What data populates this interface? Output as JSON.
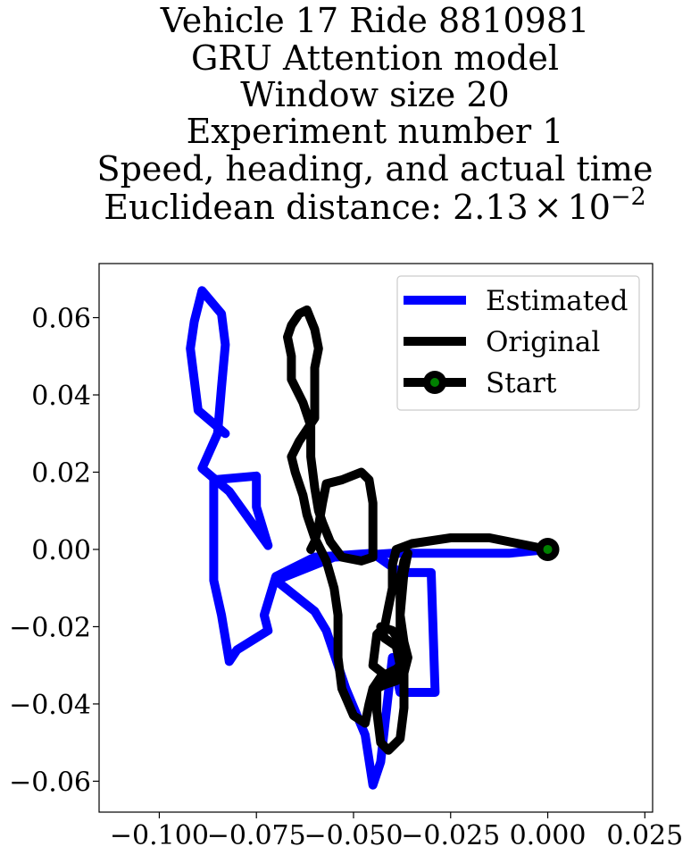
{
  "chart_data": {
    "type": "line",
    "title_lines": [
      "Vehicle 17 Ride 8810981",
      "GRU Attention model",
      "Window size 20",
      "Experiment number 1",
      "Speed, heading, and actual time"
    ],
    "title_last_prefix": "Euclidean distance: 2.13",
    "title_last_times": "×",
    "title_last_base": "10",
    "title_last_exponent": "−2",
    "xlim": [
      -0.1155,
      0.027
    ],
    "ylim": [
      -0.068,
      0.074
    ],
    "xticks": [
      -0.1,
      -0.075,
      -0.05,
      -0.025,
      0.0,
      0.025
    ],
    "xtick_labels": [
      "−0.100",
      "−0.075",
      "−0.050",
      "−0.025",
      "0.000",
      "0.025"
    ],
    "yticks": [
      0.06,
      0.04,
      0.02,
      0.0,
      -0.02,
      -0.04,
      -0.06
    ],
    "ytick_labels": [
      "0.06",
      "0.04",
      "0.02",
      "0.00",
      "−0.02",
      "−0.04",
      "−0.06"
    ],
    "grid": false,
    "legend_position": "upper right",
    "series": [
      {
        "name": "Estimated",
        "color": "#0000ff",
        "points": [
          [
            0.0,
            0.0
          ],
          [
            -0.01,
            -0.001
          ],
          [
            -0.03,
            -0.001
          ],
          [
            -0.04,
            -0.001
          ],
          [
            -0.055,
            -0.002
          ],
          [
            -0.07,
            -0.008
          ],
          [
            -0.06,
            -0.016
          ],
          [
            -0.057,
            -0.021
          ],
          [
            -0.052,
            -0.036
          ],
          [
            -0.047,
            -0.048
          ],
          [
            -0.045,
            -0.061
          ],
          [
            -0.043,
            -0.055
          ],
          [
            -0.04,
            -0.028
          ],
          [
            -0.038,
            -0.037
          ],
          [
            -0.029,
            -0.037
          ],
          [
            -0.03,
            -0.006
          ],
          [
            -0.038,
            -0.006
          ],
          [
            -0.045,
            -0.001
          ],
          [
            -0.06,
            -0.002
          ],
          [
            -0.07,
            -0.007
          ],
          [
            -0.073,
            -0.017
          ],
          [
            -0.072,
            -0.021
          ],
          [
            -0.08,
            -0.026
          ],
          [
            -0.082,
            -0.029
          ],
          [
            -0.084,
            -0.017
          ],
          [
            -0.086,
            -0.008
          ],
          [
            -0.086,
            0.01
          ],
          [
            -0.086,
            0.018
          ],
          [
            -0.075,
            0.019
          ],
          [
            -0.075,
            0.011
          ],
          [
            -0.072,
            0.001
          ],
          [
            -0.082,
            0.015
          ],
          [
            -0.089,
            0.021
          ],
          [
            -0.085,
            0.03
          ],
          [
            -0.084,
            0.042
          ],
          [
            -0.083,
            0.053
          ],
          [
            -0.084,
            0.061
          ],
          [
            -0.089,
            0.067
          ],
          [
            -0.091,
            0.059
          ],
          [
            -0.092,
            0.052
          ],
          [
            -0.09,
            0.036
          ],
          [
            -0.083,
            0.03
          ]
        ]
      },
      {
        "name": "Original",
        "color": "#000000",
        "points": [
          [
            0.0,
            0.0
          ],
          [
            -0.005,
            0.001
          ],
          [
            -0.015,
            0.003
          ],
          [
            -0.025,
            0.003
          ],
          [
            -0.035,
            0.0015
          ],
          [
            -0.039,
            0.0
          ],
          [
            -0.04,
            -0.004
          ],
          [
            -0.04,
            -0.01
          ],
          [
            -0.041,
            -0.015
          ],
          [
            -0.042,
            -0.02
          ],
          [
            -0.044,
            -0.022
          ],
          [
            -0.045,
            -0.03
          ],
          [
            -0.04,
            -0.034
          ],
          [
            -0.037,
            -0.032
          ],
          [
            -0.036,
            -0.028
          ],
          [
            -0.038,
            -0.024
          ],
          [
            -0.04,
            -0.021
          ],
          [
            -0.043,
            -0.02
          ],
          [
            -0.042,
            -0.023
          ],
          [
            -0.039,
            -0.025
          ],
          [
            -0.038,
            -0.03
          ],
          [
            -0.039,
            -0.034
          ],
          [
            -0.042,
            -0.035
          ],
          [
            -0.044,
            -0.036
          ],
          [
            -0.044,
            -0.042
          ],
          [
            -0.043,
            -0.05
          ],
          [
            -0.041,
            -0.052
          ],
          [
            -0.038,
            -0.049
          ],
          [
            -0.037,
            -0.041
          ],
          [
            -0.037,
            -0.03
          ],
          [
            -0.038,
            -0.022
          ],
          [
            -0.038,
            -0.015
          ],
          [
            -0.038,
            -0.008
          ],
          [
            -0.037,
            -0.003
          ],
          [
            -0.036,
            -0.001
          ],
          [
            -0.037,
            -0.006
          ],
          [
            -0.038,
            -0.017
          ],
          [
            -0.037,
            -0.024
          ],
          [
            -0.036,
            -0.028
          ],
          [
            -0.039,
            -0.031
          ],
          [
            -0.043,
            -0.033
          ],
          [
            -0.045,
            -0.036
          ],
          [
            -0.046,
            -0.04
          ],
          [
            -0.047,
            -0.045
          ],
          [
            -0.05,
            -0.043
          ],
          [
            -0.053,
            -0.036
          ],
          [
            -0.054,
            -0.028
          ],
          [
            -0.054,
            -0.017
          ],
          [
            -0.055,
            -0.01
          ],
          [
            -0.057,
            -0.003
          ],
          [
            -0.06,
            0.003
          ],
          [
            -0.062,
            0.009
          ],
          [
            -0.063,
            0.014
          ],
          [
            -0.065,
            0.02
          ],
          [
            -0.066,
            0.024
          ],
          [
            -0.064,
            0.028
          ],
          [
            -0.062,
            0.031
          ],
          [
            -0.06,
            0.034
          ],
          [
            -0.06,
            0.04
          ],
          [
            -0.06,
            0.047
          ],
          [
            -0.059,
            0.052
          ],
          [
            -0.06,
            0.057
          ],
          [
            -0.062,
            0.062
          ],
          [
            -0.064,
            0.061
          ],
          [
            -0.066,
            0.058
          ],
          [
            -0.067,
            0.055
          ],
          [
            -0.066,
            0.05
          ],
          [
            -0.066,
            0.044
          ],
          [
            -0.063,
            0.038
          ],
          [
            -0.061,
            0.032
          ],
          [
            -0.061,
            0.024
          ],
          [
            -0.06,
            0.016
          ],
          [
            -0.059,
            0.01
          ],
          [
            -0.058,
            0.007
          ],
          [
            -0.056,
            0.002
          ],
          [
            -0.053,
            -0.002
          ],
          [
            -0.048,
            -0.003
          ],
          [
            -0.045,
            -0.002
          ],
          [
            -0.045,
            0.004
          ],
          [
            -0.045,
            0.012
          ],
          [
            -0.046,
            0.018
          ],
          [
            -0.048,
            0.02
          ],
          [
            -0.053,
            0.018
          ],
          [
            -0.057,
            0.017
          ],
          [
            -0.058,
            0.012
          ],
          [
            -0.059,
            0.006
          ],
          [
            -0.06,
            0.002
          ],
          [
            -0.061,
            0.0
          ]
        ]
      }
    ],
    "legend": [
      {
        "label": "Estimated",
        "color": "#0000ff",
        "marker": "none"
      },
      {
        "label": "Original",
        "color": "#000000",
        "marker": "none"
      },
      {
        "label": "Start",
        "color": "#000000",
        "marker": "circle",
        "marker_face": "#008000"
      }
    ],
    "start_point": {
      "x": 0.0,
      "y": 0.0,
      "color": "#000000",
      "face": "#008000"
    }
  }
}
